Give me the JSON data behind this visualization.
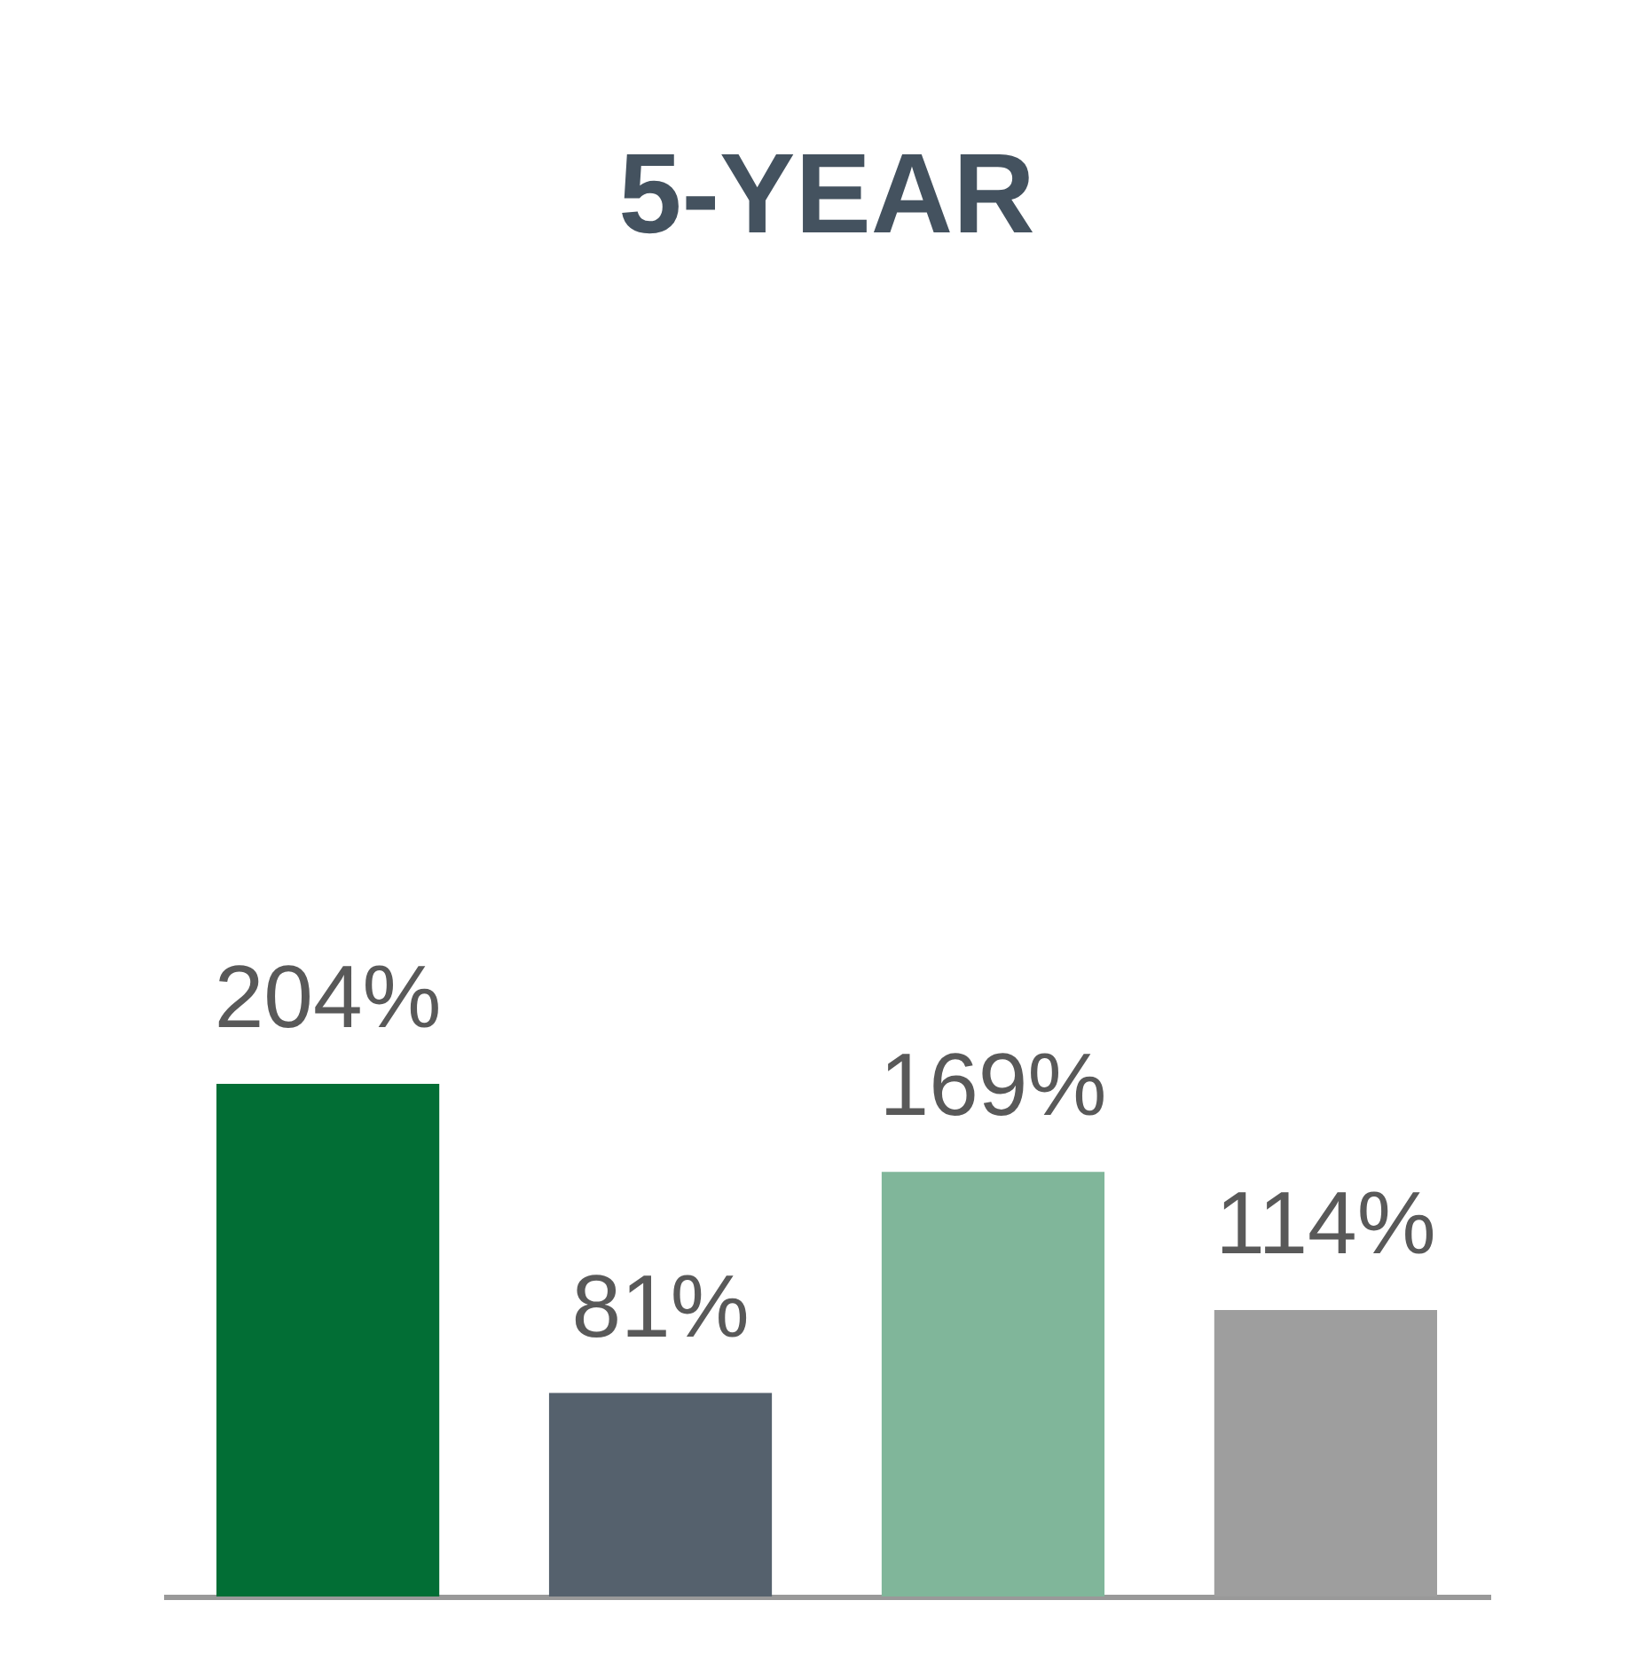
{
  "chart_data": {
    "type": "bar",
    "title": "5-YEAR",
    "categories": [
      null,
      null,
      null,
      null
    ],
    "values": [
      204,
      81,
      169,
      114
    ],
    "colors": [
      "#026e35",
      "#55616d",
      "#80b69a",
      "#9e9e9e"
    ],
    "value_labels": [
      "204%",
      "81%",
      "169%",
      "114%"
    ],
    "tick_labels": false,
    "grid": false
  }
}
